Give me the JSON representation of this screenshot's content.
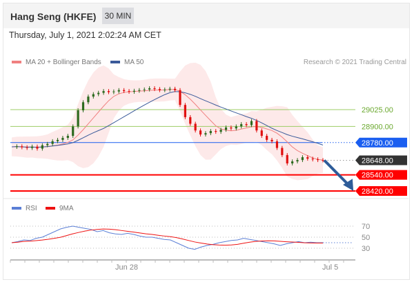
{
  "header": {
    "title": "Hang Seng (HKFE)",
    "timeframe": "30 MIN"
  },
  "timestamp": "Thursday, July 1, 2021 2:02:24 AM CET",
  "legend": {
    "ma20": "MA 20 + Bollinger Bands",
    "ma50": "MA 50",
    "rsi": "RSI",
    "rsi_ma": "9MA"
  },
  "credit": "Research © 2021 Trading Central",
  "colors": {
    "ma20": "#f08080",
    "ma50": "#3a5a9a",
    "up": "#2d6a1f",
    "down": "#e01010",
    "resist": "#9ccc65",
    "pivot": "#1a5ef0",
    "support": "#ff0000",
    "last": "#333333",
    "arrow": "#2e5c99",
    "rsi": "#5b7fd6",
    "rsi_ma": "#ee1111"
  },
  "chart_data": {
    "type": "candlestick",
    "price_levels": [
      {
        "label": "29025.00",
        "value": 29025,
        "kind": "resistance"
      },
      {
        "label": "28900.00",
        "value": 28900,
        "kind": "resistance"
      },
      {
        "label": "28780.00",
        "value": 28780,
        "kind": "pivot"
      },
      {
        "label": "28648.00",
        "value": 28648,
        "kind": "last"
      },
      {
        "label": "28540.00",
        "value": 28540,
        "kind": "support"
      },
      {
        "label": "28420.00",
        "value": 28420,
        "kind": "support"
      }
    ],
    "closes": [
      28748,
      28752,
      28745,
      28740,
      28750,
      28735,
      28760,
      28770,
      28790,
      28800,
      28815,
      28830,
      28900,
      29020,
      29080,
      29122,
      29140,
      29150,
      29163,
      29155,
      29160,
      29170,
      29163,
      29158,
      29165,
      29170,
      29175,
      29184,
      29178,
      29170,
      29174,
      29180,
      29170,
      29060,
      28969,
      28920,
      28870,
      28840,
      28850,
      28866,
      28860,
      28875,
      28892,
      28885,
      28900,
      28917,
      28910,
      28940,
      28870,
      28830,
      28800,
      28789,
      28740,
      28687,
      28625,
      28640,
      28650,
      28671,
      28660,
      28655,
      28650,
      28648
    ],
    "rsi": [
      40,
      42,
      45,
      44,
      48,
      50,
      55,
      60,
      65,
      68,
      70,
      68,
      66,
      64,
      60,
      62,
      58,
      56,
      55,
      57,
      55,
      52,
      50,
      50,
      48,
      46,
      45,
      40,
      35,
      30,
      28,
      32,
      35,
      37,
      40,
      42,
      44,
      45,
      48,
      46,
      44,
      42,
      40,
      38,
      35,
      38,
      40,
      42,
      40,
      41,
      40,
      40
    ],
    "rsi_ticks": [
      70,
      50,
      30
    ],
    "x_ticks": [
      "Jun 28",
      "Jul 5"
    ],
    "projection": "down to 28420.00"
  }
}
